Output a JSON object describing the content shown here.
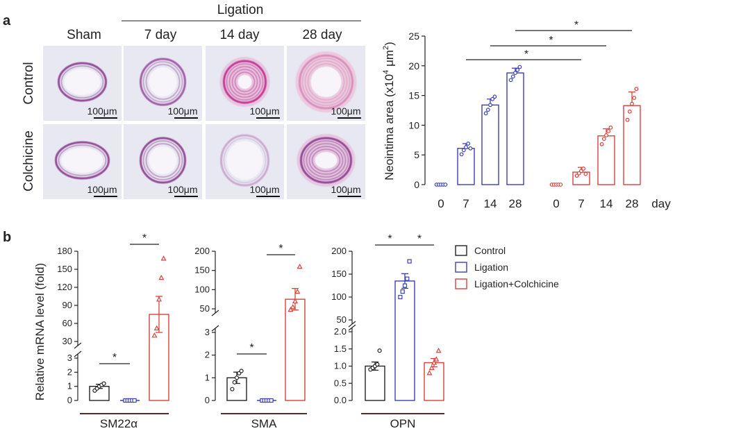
{
  "panel_labels": {
    "a": "a",
    "b": "b"
  },
  "histology": {
    "group_label": "Ligation",
    "columns": [
      "Sham",
      "7 day",
      "14 day",
      "28 day"
    ],
    "rows": [
      "Control",
      "Colchicine"
    ],
    "scale_bar": "100μm"
  },
  "colors": {
    "control": "#222222",
    "ligation": "#3a3fb5",
    "colchicine": "#d9413c"
  },
  "legend": [
    "Control",
    "Ligation",
    "Ligation+Colchicine"
  ],
  "chart_data": [
    {
      "id": "neointima",
      "type": "bar",
      "ylabel_parts": [
        "Neointima area (x10",
        "4",
        " μm",
        "2",
        ")"
      ],
      "ylim": [
        0,
        25
      ],
      "yticks": [
        "0",
        "5",
        "10",
        "15",
        "20",
        "25"
      ],
      "x_unit": "day",
      "series": [
        {
          "name": "Ligation",
          "categories": [
            "0",
            "7",
            "14",
            "28"
          ],
          "values": [
            0,
            6.1,
            13.4,
            18.8
          ],
          "err": [
            0,
            0.8,
            1.0,
            0.8
          ],
          "points": [
            [
              0,
              0,
              0,
              0,
              0
            ],
            [
              5.1,
              5.8,
              6.3,
              6.9,
              6.1
            ],
            [
              12.0,
              12.6,
              13.4,
              14.4,
              14.8
            ],
            [
              17.6,
              18.2,
              18.8,
              19.3,
              19.8
            ]
          ]
        },
        {
          "name": "Ligation+Colchicine",
          "categories": [
            "0",
            "7",
            "14",
            "28"
          ],
          "values": [
            0,
            2.1,
            8.2,
            13.3
          ],
          "err": [
            0,
            0.8,
            1.2,
            2.3
          ],
          "points": [
            [
              0,
              0,
              0,
              0,
              0
            ],
            [
              1.5,
              1.9,
              2.3,
              2.7,
              1.8
            ],
            [
              6.8,
              7.7,
              8.3,
              9.0,
              9.6
            ],
            [
              10.9,
              12.3,
              13.6,
              14.6,
              16.1
            ]
          ]
        }
      ],
      "significance": [
        {
          "from": "7",
          "to": "7c",
          "label": "*"
        },
        {
          "from": "14",
          "to": "14c",
          "label": "*"
        },
        {
          "from": "28",
          "to": "28c",
          "label": "*"
        }
      ]
    },
    {
      "id": "sm22",
      "type": "bar",
      "title": "SM22α",
      "ylabel": "Relative mRNA level (fold)",
      "yticks_upper": [
        "30",
        "60",
        "90",
        "120",
        "150",
        "180"
      ],
      "yticks_lower": [
        "0",
        "1",
        "2",
        "3"
      ],
      "series": [
        {
          "name": "Control",
          "value": 1.0,
          "err": 0.15,
          "points": [
            0.7,
            0.85,
            1.0,
            1.1,
            1.2
          ]
        },
        {
          "name": "Ligation",
          "value": 0.0,
          "err": 0.0,
          "points": [
            0,
            0,
            0,
            0,
            0
          ]
        },
        {
          "name": "Ligation+Colchicine",
          "value": 75,
          "err": 30,
          "points": [
            40,
            52,
            100,
            136,
            168
          ]
        }
      ],
      "significance": [
        {
          "bars": [
            0,
            1
          ],
          "label": "*"
        },
        {
          "bars": [
            1,
            2
          ],
          "label": "*"
        }
      ]
    },
    {
      "id": "sma",
      "type": "bar",
      "title": "SMA",
      "yticks_upper": [
        "50",
        "100",
        "150",
        "200"
      ],
      "yticks_lower": [
        "0",
        "1",
        "2",
        "3"
      ],
      "series": [
        {
          "name": "Control",
          "value": 1.0,
          "err": 0.25,
          "points": [
            0.5,
            0.8,
            1.0,
            1.2,
            1.3
          ]
        },
        {
          "name": "Ligation",
          "value": 0.0,
          "err": 0.0,
          "points": [
            0,
            0,
            0,
            0,
            0
          ]
        },
        {
          "name": "Ligation+Colchicine",
          "value": 75,
          "err": 28,
          "points": [
            48,
            55,
            70,
            95,
            160
          ]
        }
      ],
      "significance": [
        {
          "bars": [
            0,
            1
          ],
          "label": "*"
        },
        {
          "bars": [
            1,
            2
          ],
          "label": "*"
        }
      ]
    },
    {
      "id": "opn",
      "type": "bar",
      "title": "OPN",
      "yticks_upper": [
        "50",
        "100",
        "150",
        "200"
      ],
      "yticks_lower": [
        "0.0",
        "0.5",
        "1.0",
        "1.5",
        "2.0"
      ],
      "series": [
        {
          "name": "Control",
          "value": 1.0,
          "err": 0.12,
          "points": [
            0.9,
            0.95,
            1.0,
            1.05,
            1.45
          ]
        },
        {
          "name": "Ligation",
          "value": 135,
          "err": 16,
          "points": [
            100,
            112,
            125,
            140,
            178
          ]
        },
        {
          "name": "Ligation+Colchicine",
          "value": 1.1,
          "err": 0.12,
          "points": [
            0.8,
            0.95,
            1.1,
            1.2,
            1.45
          ]
        }
      ],
      "significance": [
        {
          "bars": [
            0,
            1
          ],
          "label": "*"
        },
        {
          "bars": [
            1,
            2
          ],
          "label": "*"
        }
      ]
    }
  ]
}
